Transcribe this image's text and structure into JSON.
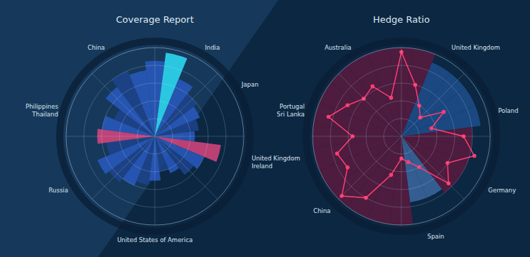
{
  "chart_data": [
    {
      "type": "polar",
      "title": "Coverage Report",
      "categories": [
        null,
        null,
        "India",
        null,
        "Japan",
        null,
        null,
        "United Kingdom\nIreland",
        null,
        null,
        null,
        null,
        "United States of America",
        null,
        null,
        null,
        "Russia",
        null,
        null,
        "Philippines\nThailand",
        null,
        null,
        "China",
        null
      ],
      "series": [
        {
          "type": "bar",
          "values": [
            85,
            95,
            70,
            60,
            55,
            50,
            45,
            75,
            60,
            55,
            45,
            40,
            50,
            55,
            60,
            65,
            70,
            55,
            65,
            60,
            50,
            70,
            80,
            75
          ],
          "colors": [
            "#2a5cc4",
            "#2ee6ff",
            "#2a5cc4",
            "#1d448f",
            "#2a5cc4",
            "#1d448f",
            "#2a5cc4",
            "#e2457f",
            "#2a5cc4",
            "#1d448f",
            "#2a5cc4",
            "#1d448f",
            "#2a5cc4",
            "#1d448f",
            "#2a5cc4",
            "#1d448f",
            "#2a5cc4",
            "#1d448f",
            "#e2457f",
            "#2a5cc4",
            "#1d448f",
            "#2a5cc4",
            "#1d448f",
            "#2a5cc4"
          ]
        }
      ],
      "ylim": [
        0,
        100
      ],
      "yticks": [
        20,
        40,
        60,
        80,
        100
      ],
      "grid": true,
      "tick_labels": false
    },
    {
      "type": "polar",
      "title": "Hedge Ratio",
      "categories": [
        null,
        null,
        "United Kingdom",
        null,
        null,
        "Poland",
        null,
        null,
        "Germany",
        null,
        null,
        "Spain",
        null,
        null,
        null,
        "China",
        null,
        null,
        null,
        "Portugal\nSri Lanka",
        null,
        null,
        "Australia",
        null
      ],
      "series": [
        {
          "type": "bar",
          "values": [
            100,
            100,
            90,
            90,
            90,
            90,
            80,
            80,
            80,
            80,
            75,
            75,
            100,
            100,
            100,
            100,
            100,
            100,
            100,
            100,
            100,
            100,
            100,
            100
          ],
          "colors": [
            "#5b1a3e",
            "#5b1a3e",
            "#1f4f8f",
            "#1f4f8f",
            "#1f4f8f",
            "#1f4f8f",
            "#5b1a3e",
            "#5b1a3e",
            "#5b1a3e",
            "#5b1a3e",
            "#3d6aa3",
            "#3d6aa3",
            "#5b1a3e",
            "#5b1a3e",
            "#5b1a3e",
            "#5b1a3e",
            "#5b1a3e",
            "#5b1a3e",
            "#5b1a3e",
            "#5b1a3e",
            "#5b1a3e",
            "#5b1a3e",
            "#5b1a3e",
            "#5b1a3e"
          ]
        },
        {
          "type": "line",
          "color": "#ff3d73",
          "marker": "circle",
          "values": [
            95,
            60,
            40,
            30,
            55,
            35,
            70,
            85,
            60,
            75,
            40,
            30,
            25,
            45,
            80,
            95,
            70,
            75,
            55,
            85,
            70,
            60,
            65,
            45
          ]
        }
      ],
      "ylim": [
        0,
        100
      ],
      "yticks": [
        20,
        40,
        60,
        80,
        100
      ],
      "grid": true,
      "tick_labels": false
    }
  ]
}
